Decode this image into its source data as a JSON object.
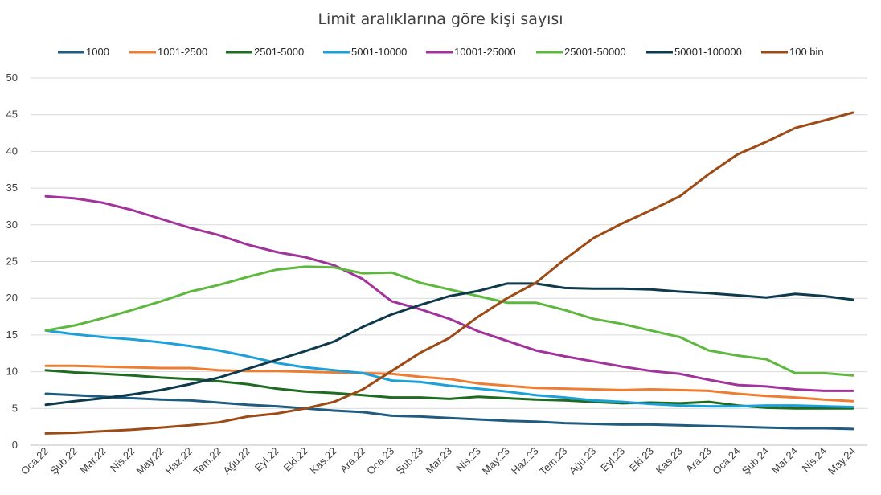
{
  "chart_data": {
    "type": "line",
    "title": "Limit aralıklarına göre kişi sayısı",
    "xlabel": "",
    "ylabel": "",
    "ylim": [
      0,
      50
    ],
    "yticks": [
      0,
      5,
      10,
      15,
      20,
      25,
      30,
      35,
      40,
      45,
      50
    ],
    "grid": true,
    "legend": "top",
    "categories": [
      "Oca.22",
      "Şub.22",
      "Mar.22",
      "Nis.22",
      "May.22",
      "Haz.22",
      "Tem.22",
      "Ağu.22",
      "Eyl.22",
      "Eki.22",
      "Kas.22",
      "Ara.22",
      "Oca.23",
      "Şub.23",
      "Mar.23",
      "Nis.23",
      "May.23",
      "Haz.23",
      "Tem.23",
      "Ağu.23",
      "Eyl.23",
      "Eki.23",
      "Kas.23",
      "Ara.23",
      "Oca.24",
      "Şub.24",
      "Mar.24",
      "Nis.24",
      "May.24"
    ],
    "series": [
      {
        "name": "1000",
        "color": "#1f5c7f",
        "values": [
          7.0,
          6.8,
          6.6,
          6.4,
          6.2,
          6.1,
          5.8,
          5.5,
          5.3,
          5.0,
          4.7,
          4.5,
          4.0,
          3.9,
          3.7,
          3.5,
          3.3,
          3.2,
          3.0,
          2.9,
          2.8,
          2.8,
          2.7,
          2.6,
          2.5,
          2.4,
          2.3,
          2.3,
          2.2
        ]
      },
      {
        "name": "1001-2500",
        "color": "#ed7d31",
        "values": [
          10.8,
          10.8,
          10.7,
          10.6,
          10.5,
          10.5,
          10.2,
          10.1,
          10.1,
          10.0,
          9.9,
          9.8,
          9.7,
          9.3,
          9.0,
          8.4,
          8.1,
          7.8,
          7.7,
          7.6,
          7.5,
          7.6,
          7.5,
          7.4,
          7.0,
          6.7,
          6.5,
          6.2,
          6.0
        ]
      },
      {
        "name": "2501-5000",
        "color": "#1e6b21",
        "values": [
          10.2,
          9.9,
          9.7,
          9.5,
          9.2,
          9.0,
          8.7,
          8.3,
          7.7,
          7.3,
          7.1,
          6.8,
          6.5,
          6.5,
          6.3,
          6.6,
          6.4,
          6.2,
          6.1,
          5.9,
          5.7,
          5.8,
          5.7,
          5.9,
          5.4,
          5.1,
          5.0,
          5.0,
          5.0
        ]
      },
      {
        "name": "5001-10000",
        "color": "#1ba0d8",
        "values": [
          15.6,
          15.1,
          14.7,
          14.4,
          14.0,
          13.5,
          12.9,
          12.1,
          11.2,
          10.6,
          10.2,
          9.8,
          8.8,
          8.6,
          8.1,
          7.7,
          7.3,
          6.8,
          6.5,
          6.1,
          5.9,
          5.6,
          5.4,
          5.3,
          5.3,
          5.4,
          5.4,
          5.3,
          5.2
        ]
      },
      {
        "name": "10001-25000",
        "color": "#a3339c",
        "values": [
          33.9,
          33.6,
          33.0,
          32.0,
          30.8,
          29.6,
          28.6,
          27.3,
          26.3,
          25.6,
          24.5,
          22.6,
          19.6,
          18.5,
          17.2,
          15.5,
          14.2,
          12.9,
          12.1,
          11.4,
          10.7,
          10.1,
          9.7,
          8.9,
          8.2,
          8.0,
          7.6,
          7.4,
          7.4
        ]
      },
      {
        "name": "25001-50000",
        "color": "#5eb83f",
        "values": [
          15.6,
          16.3,
          17.3,
          18.4,
          19.6,
          20.9,
          21.8,
          22.9,
          23.9,
          24.3,
          24.2,
          23.4,
          23.5,
          22.1,
          21.2,
          20.3,
          19.4,
          19.4,
          18.4,
          17.2,
          16.5,
          15.6,
          14.7,
          12.9,
          12.2,
          11.7,
          9.8,
          9.8,
          9.5
        ]
      },
      {
        "name": "50001-100000",
        "color": "#0e3a4d",
        "values": [
          5.5,
          6.0,
          6.4,
          6.9,
          7.5,
          8.3,
          9.2,
          10.4,
          11.6,
          12.8,
          14.1,
          16.1,
          17.8,
          19.1,
          20.3,
          21.0,
          22.0,
          22.0,
          21.4,
          21.3,
          21.3,
          21.2,
          20.9,
          20.7,
          20.4,
          20.1,
          20.6,
          20.3,
          19.8
        ]
      },
      {
        "name": "100 bin",
        "color": "#9c4a16",
        "values": [
          1.6,
          1.7,
          1.9,
          2.1,
          2.4,
          2.7,
          3.1,
          3.9,
          4.3,
          5.0,
          5.9,
          7.6,
          10.1,
          12.6,
          14.6,
          17.5,
          20.0,
          22.1,
          25.3,
          28.2,
          30.2,
          32.0,
          33.9,
          36.9,
          39.6,
          41.3,
          43.2,
          44.2,
          45.3
        ]
      }
    ]
  }
}
